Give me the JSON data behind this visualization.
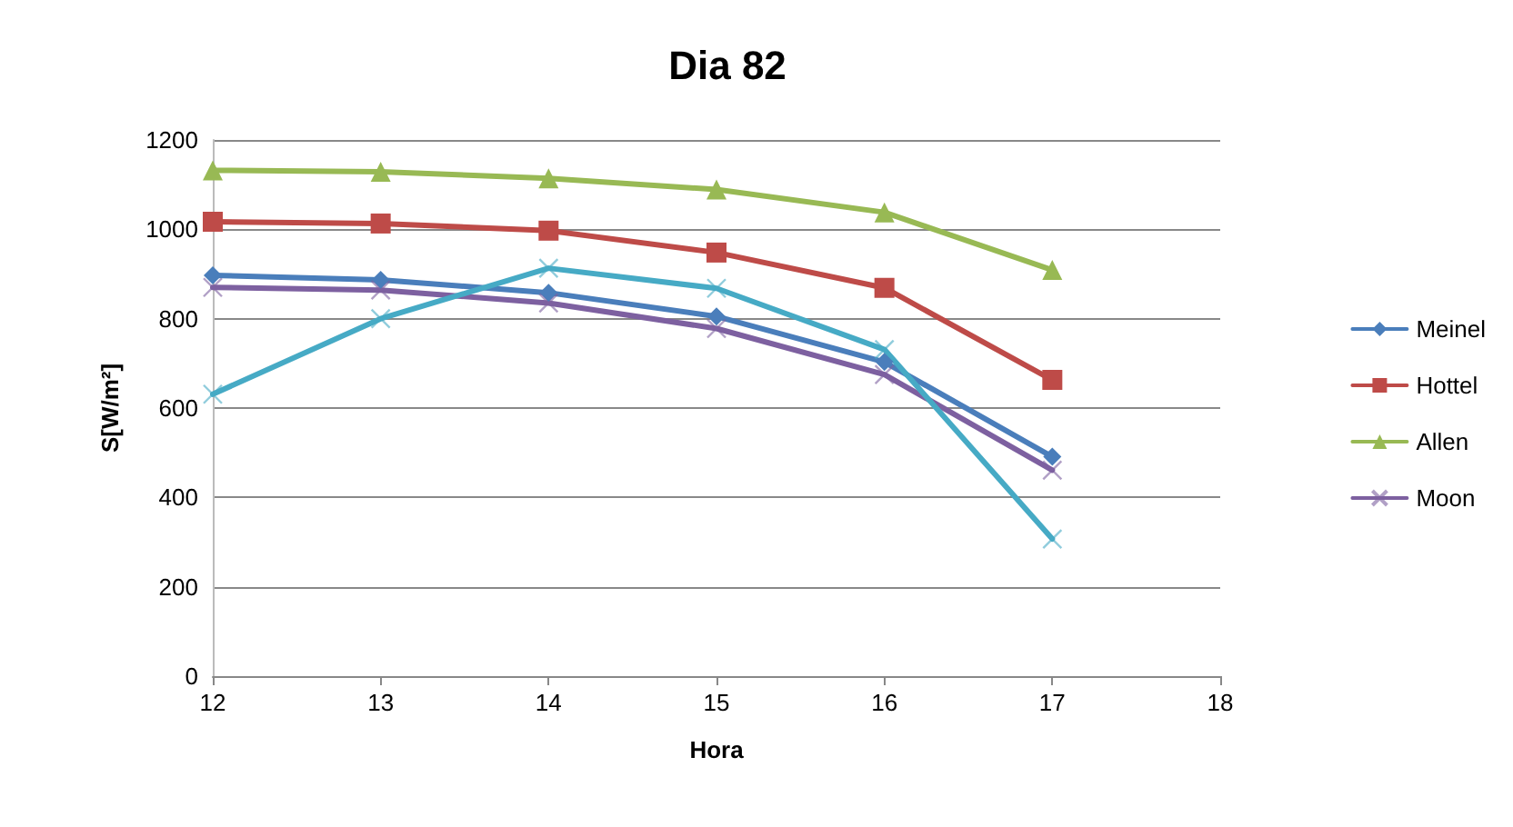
{
  "chart_data": {
    "type": "line",
    "title": "Dia 82",
    "xlabel": "Hora",
    "ylabel": "S[W/m²]",
    "x": [
      12,
      13,
      14,
      15,
      16,
      17
    ],
    "series": [
      {
        "name": "Meinel",
        "color": "#4a7ebb",
        "marker": "diamond",
        "values": [
          897,
          887,
          858,
          805,
          703,
          491
        ]
      },
      {
        "name": "Hottel",
        "color": "#be4b48",
        "marker": "square",
        "values": [
          1017,
          1013,
          997,
          948,
          869,
          663
        ]
      },
      {
        "name": "Allen",
        "color": "#98b954",
        "marker": "triangle",
        "values": [
          1132,
          1129,
          1114,
          1089,
          1038,
          909
        ]
      },
      {
        "name": "Moon",
        "color": "#7d60a0",
        "marker": "cross",
        "values": [
          870,
          864,
          835,
          778,
          675,
          461
        ]
      },
      {
        "color": "#46aac5",
        "marker": "cross",
        "values": [
          631,
          800,
          913,
          868,
          731,
          307
        ]
      }
    ],
    "xlim": [
      12,
      18
    ],
    "xticks": [
      12,
      13,
      14,
      15,
      16,
      17,
      18
    ],
    "ylim": [
      0,
      1200
    ],
    "yticks": [
      0,
      200,
      400,
      600,
      800,
      1000,
      1200
    ],
    "grid": "y",
    "legend": "right",
    "line_style": "solid"
  }
}
